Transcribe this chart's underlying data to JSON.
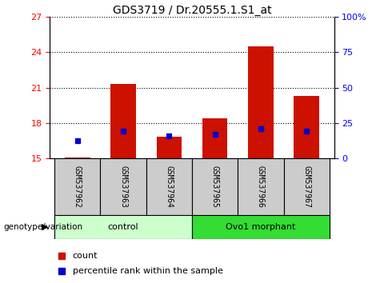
{
  "title": "GDS3719 / Dr.20555.1.S1_at",
  "samples": [
    "GSM537962",
    "GSM537963",
    "GSM537964",
    "GSM537965",
    "GSM537966",
    "GSM537967"
  ],
  "count_values": [
    15.1,
    21.3,
    16.85,
    18.4,
    24.5,
    20.3
  ],
  "percentile_values": [
    16.5,
    17.3,
    16.9,
    17.05,
    17.5,
    17.3
  ],
  "ylim_left": [
    15,
    27
  ],
  "ylim_right": [
    0,
    100
  ],
  "yticks_left": [
    15,
    18,
    21,
    24,
    27
  ],
  "yticks_right": [
    0,
    25,
    50,
    75,
    100
  ],
  "ytick_labels_right": [
    "0",
    "25",
    "50",
    "75",
    "100%"
  ],
  "groups": [
    {
      "label": "control",
      "indices": [
        0,
        1,
        2
      ],
      "color": "#ccffcc"
    },
    {
      "label": "Ovo1 morphant",
      "indices": [
        3,
        4,
        5
      ],
      "color": "#33dd33"
    }
  ],
  "bar_color": "#cc1100",
  "percentile_color": "#0000cc",
  "bar_bottom": 15,
  "bar_width": 0.55,
  "legend_items": [
    {
      "label": "count",
      "color": "#cc1100"
    },
    {
      "label": "percentile rank within the sample",
      "color": "#0000cc"
    }
  ],
  "genotype_label": "genotype/variation",
  "title_fontsize": 10,
  "tick_fontsize": 8,
  "group_fontsize": 8,
  "sample_fontsize": 7,
  "legend_fontsize": 8
}
